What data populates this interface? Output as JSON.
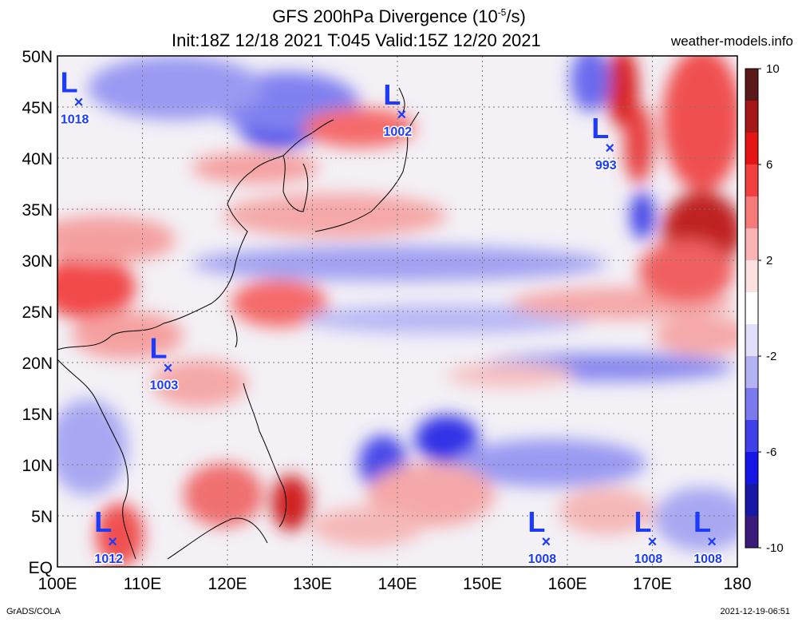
{
  "title": {
    "line1_prefix": "GFS 200hPa Divergence (10",
    "line1_exp": "-5",
    "line1_suffix": "/s)",
    "line2": "Init:18Z 12/18 2021 T:045 Valid:15Z 12/20 2021",
    "site": "weather-models.info"
  },
  "footer": {
    "left": "GrADS/COLA",
    "right": "2021-12-19-06:51"
  },
  "map": {
    "lon_min": 100,
    "lon_max": 180,
    "lat_min": 0,
    "lat_max": 50,
    "lon_labels": [
      "100E",
      "110E",
      "120E",
      "130E",
      "140E",
      "150E",
      "160E",
      "170E",
      "180"
    ],
    "lat_labels": [
      "EQ",
      "5N",
      "10N",
      "15N",
      "20N",
      "25N",
      "30N",
      "35N",
      "40N",
      "45N",
      "50N"
    ],
    "grid": true
  },
  "colorbar": {
    "labels": [
      "10",
      "6",
      "2",
      "-2",
      "-6",
      "-10"
    ],
    "colors": [
      "#5a1818",
      "#a51818",
      "#e61515",
      "#f24040",
      "#f77a7a",
      "#fbb3b3",
      "#fde0e0",
      "#ffffff",
      "#e0e0fb",
      "#b3b3f4",
      "#7a7aee",
      "#4040e8",
      "#1515e6",
      "#1818a5",
      "#3a1a7a"
    ]
  },
  "lows": [
    {
      "lon": 102.5,
      "lat": 45.5,
      "pressure": "1018",
      "letter": "L",
      "mark": "×"
    },
    {
      "lon": 140.5,
      "lat": 44.3,
      "pressure": "1002",
      "letter": "L",
      "mark": "×"
    },
    {
      "lon": 165.0,
      "lat": 41.0,
      "pressure": "993",
      "letter": "L",
      "mark": "×"
    },
    {
      "lon": 113.0,
      "lat": 19.5,
      "pressure": "1003",
      "letter": "L",
      "mark": "×"
    },
    {
      "lon": 106.5,
      "lat": 2.5,
      "pressure": "1012",
      "letter": "L",
      "mark": "×"
    },
    {
      "lon": 157.5,
      "lat": 2.5,
      "pressure": "1008",
      "letter": "L",
      "mark": "×"
    },
    {
      "lon": 170.0,
      "lat": 2.5,
      "pressure": "1008",
      "letter": "L",
      "mark": "×"
    },
    {
      "lon": 177.0,
      "lat": 2.5,
      "pressure": "1008",
      "letter": "L",
      "mark": "×"
    }
  ]
}
